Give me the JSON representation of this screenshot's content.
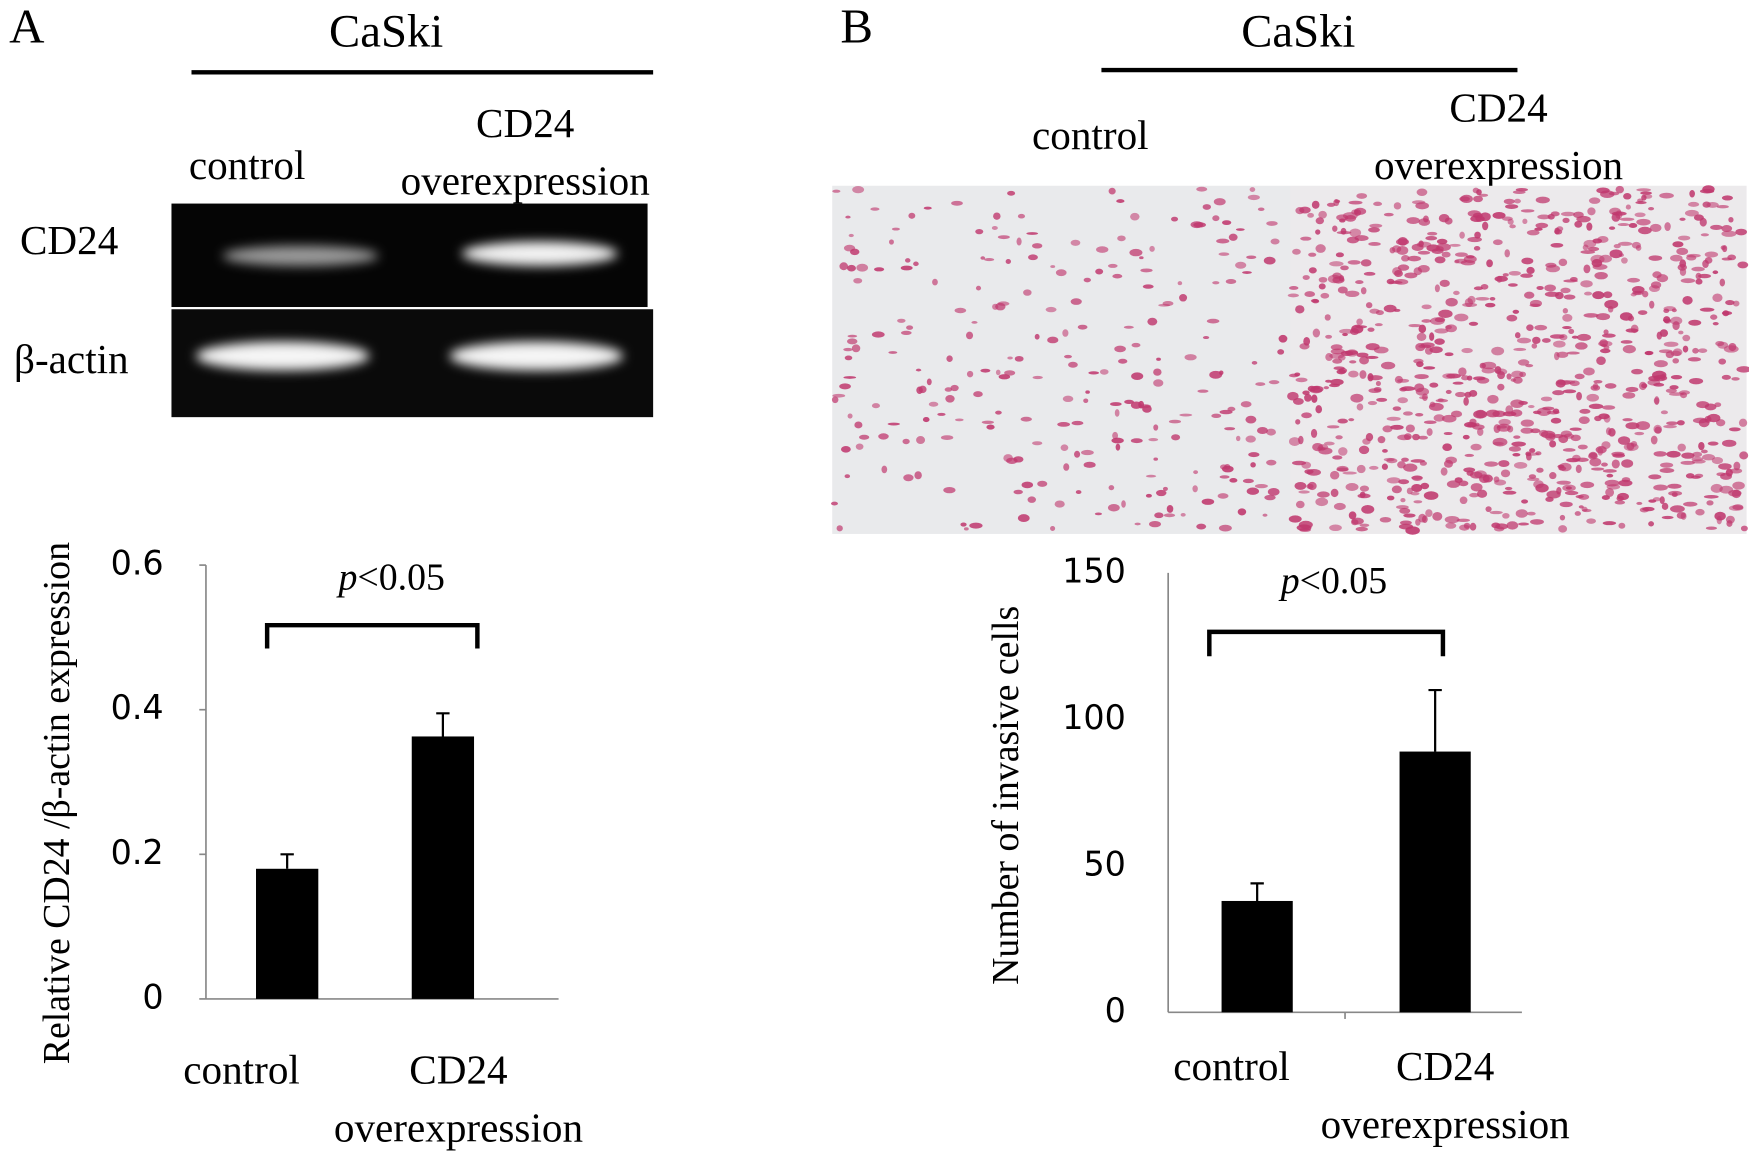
{
  "figure": {
    "panels": [
      {
        "label": "A",
        "title": "CaSki",
        "lanes": [
          "control",
          "CD24 overexpression"
        ],
        "rows": [
          "CD24",
          "β-actin"
        ]
      },
      {
        "label": "B",
        "title": "CaSki",
        "lanes": [
          "control",
          "CD24 overexpression"
        ]
      }
    ]
  },
  "chart_data": [
    {
      "type": "bar",
      "ylabel": "Relative CD24 /β-actin expression",
      "categories": [
        "control",
        "CD24 overexpression"
      ],
      "values": [
        0.18,
        0.363
      ],
      "errors": [
        0.02,
        0.032
      ],
      "color": "#000000",
      "ylim": [
        0,
        0.6
      ],
      "yticks": [
        0,
        0.2,
        0.4,
        0.6
      ],
      "annotation": {
        "italic": "p",
        "text": "<0.05"
      }
    },
    {
      "type": "bar",
      "ylabel": "Number of invasive cells",
      "categories": [
        "control",
        "CD24 overexpression"
      ],
      "values": [
        38,
        89
      ],
      "errors": [
        6,
        21
      ],
      "color": "#000000",
      "ylim": [
        0,
        150
      ],
      "yticks": [
        0,
        50,
        100,
        150
      ],
      "annotation": {
        "italic": "p",
        "text": "<0.05"
      }
    }
  ]
}
